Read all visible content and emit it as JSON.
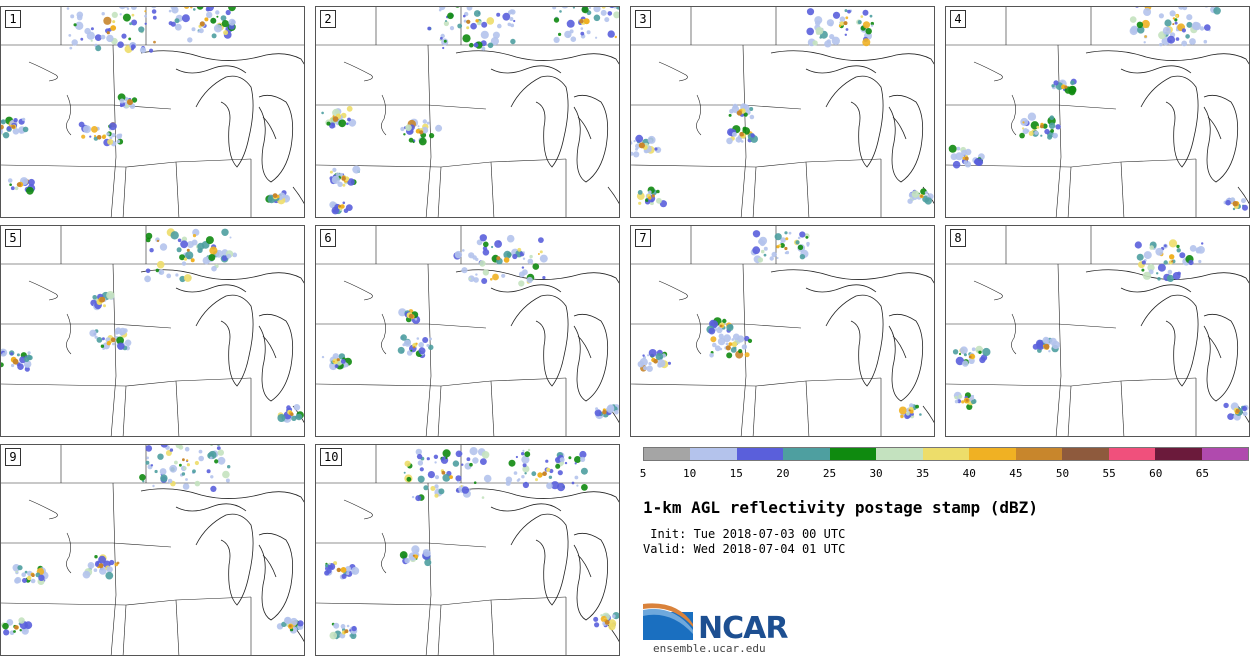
{
  "panels": [
    {
      "member": "1"
    },
    {
      "member": "2"
    },
    {
      "member": "3"
    },
    {
      "member": "4"
    },
    {
      "member": "5"
    },
    {
      "member": "6"
    },
    {
      "member": "7"
    },
    {
      "member": "8"
    },
    {
      "member": "9"
    },
    {
      "member": "10"
    }
  ],
  "legend": {
    "ticks": [
      "5",
      "10",
      "15",
      "20",
      "25",
      "30",
      "35",
      "40",
      "45",
      "50",
      "55",
      "60",
      "65"
    ],
    "colors": [
      "#a5a5a5",
      "#b4c3ec",
      "#5a5fdb",
      "#4e9fa0",
      "#0f8a0f",
      "#c4e2bf",
      "#eddd6a",
      "#f0b123",
      "#c8862c",
      "#8e5a3d",
      "#f0507c",
      "#6b1a3b",
      "#b04aae"
    ]
  },
  "title": "1-km AGL reflectivity postage stamp (dBZ)",
  "init": " Init: Tue 2018-07-03 00 UTC",
  "valid": "Valid: Wed 2018-07-04 01 UTC",
  "logo": {
    "name": "NCAR",
    "url": "ensemble.ucar.edu"
  }
}
